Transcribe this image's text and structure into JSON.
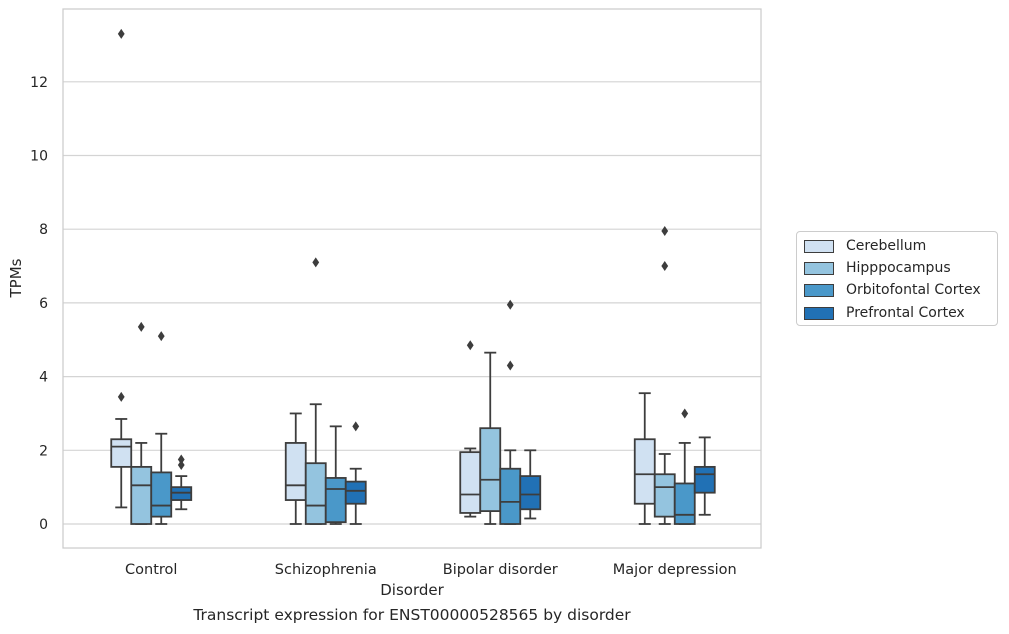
{
  "caption": "Transcript expression for ENST00000528565 by disorder",
  "chart_data": {
    "type": "box",
    "xlabel": "Disorder",
    "ylabel": "TPMs",
    "ylim": [
      -0.6,
      13.8
    ],
    "yticks": [
      0,
      2,
      4,
      6,
      8,
      10,
      12
    ],
    "categories": [
      "Control",
      "Schizophrenia",
      "Bipolar disorder",
      "Major depression"
    ],
    "grid": "horizontal",
    "legend_position": "right",
    "series": [
      {
        "name": "Cerebellum",
        "color": "#d0e1f2",
        "boxes": [
          {
            "whislo": 0.45,
            "q1": 1.55,
            "med": 2.1,
            "q3": 2.3,
            "whishi": 2.85,
            "fliers": [
              3.45,
              13.3
            ]
          },
          {
            "whislo": 0.0,
            "q1": 0.65,
            "med": 1.05,
            "q3": 2.2,
            "whishi": 3.0,
            "fliers": []
          },
          {
            "whislo": 0.2,
            "q1": 0.3,
            "med": 0.8,
            "q3": 1.95,
            "whishi": 2.05,
            "fliers": [
              4.85
            ]
          },
          {
            "whislo": 0.0,
            "q1": 0.55,
            "med": 1.35,
            "q3": 2.3,
            "whishi": 3.55,
            "fliers": []
          }
        ]
      },
      {
        "name": "Hipppocampus",
        "color": "#94c4df",
        "boxes": [
          {
            "whislo": 0.0,
            "q1": 0.0,
            "med": 1.05,
            "q3": 1.55,
            "whishi": 2.2,
            "fliers": [
              5.35
            ]
          },
          {
            "whislo": 0.0,
            "q1": 0.0,
            "med": 0.5,
            "q3": 1.65,
            "whishi": 3.25,
            "fliers": [
              7.1
            ]
          },
          {
            "whislo": 0.0,
            "q1": 0.35,
            "med": 1.2,
            "q3": 2.6,
            "whishi": 4.65,
            "fliers": []
          },
          {
            "whislo": 0.0,
            "q1": 0.2,
            "med": 1.0,
            "q3": 1.35,
            "whishi": 1.9,
            "fliers": [
              7.0,
              7.95
            ]
          }
        ]
      },
      {
        "name": "Orbitofontal Cortex",
        "color": "#4a98c9",
        "boxes": [
          {
            "whislo": 0.0,
            "q1": 0.2,
            "med": 0.5,
            "q3": 1.4,
            "whishi": 2.45,
            "fliers": [
              5.1
            ]
          },
          {
            "whislo": 0.0,
            "q1": 0.05,
            "med": 0.95,
            "q3": 1.25,
            "whishi": 2.65,
            "fliers": []
          },
          {
            "whislo": 0.0,
            "q1": 0.0,
            "med": 0.6,
            "q3": 1.5,
            "whishi": 2.0,
            "fliers": [
              4.3,
              5.95
            ]
          },
          {
            "whislo": 0.0,
            "q1": 0.0,
            "med": 0.25,
            "q3": 1.1,
            "whishi": 2.2,
            "fliers": [
              3.0
            ]
          }
        ]
      },
      {
        "name": "Prefrontal Cortex",
        "color": "#2171b5",
        "boxes": [
          {
            "whislo": 0.4,
            "q1": 0.65,
            "med": 0.85,
            "q3": 1.0,
            "whishi": 1.3,
            "fliers": [
              1.6,
              1.75
            ]
          },
          {
            "whislo": 0.0,
            "q1": 0.55,
            "med": 0.9,
            "q3": 1.15,
            "whishi": 1.5,
            "fliers": [
              2.65
            ]
          },
          {
            "whislo": 0.15,
            "q1": 0.4,
            "med": 0.8,
            "q3": 1.3,
            "whishi": 2.0,
            "fliers": []
          },
          {
            "whislo": 0.25,
            "q1": 0.85,
            "med": 1.35,
            "q3": 1.55,
            "whishi": 2.35,
            "fliers": []
          }
        ]
      }
    ]
  }
}
